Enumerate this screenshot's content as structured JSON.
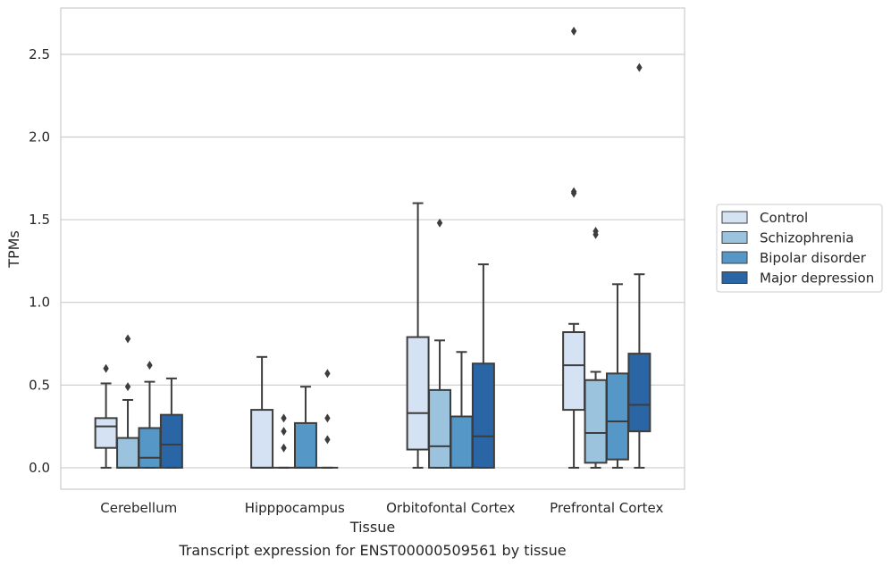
{
  "caption": "Transcript expression for ENST00000509561 by tissue",
  "chart_data": {
    "type": "box",
    "title": "",
    "xlabel": "Tissue",
    "ylabel": "TPMs",
    "ylim": [
      -0.13,
      2.78
    ],
    "yticks": [
      0.0,
      0.5,
      1.0,
      1.5,
      2.0,
      2.5
    ],
    "ytick_labels": [
      "0.0",
      "0.5",
      "1.0",
      "1.5",
      "2.0",
      "2.5"
    ],
    "grid": "horizontal",
    "legend_position": "right",
    "categories": [
      "Cerebellum",
      "Hipppocampus",
      "Orbitofontal Cortex",
      "Prefrontal Cortex"
    ],
    "series": [
      {
        "name": "Control",
        "color": "#d4e2f3",
        "boxes": [
          {
            "whislo": 0.0,
            "q1": 0.12,
            "med": 0.25,
            "q3": 0.3,
            "whishi": 0.51,
            "fliers": [
              0.6
            ]
          },
          {
            "whislo": 0.0,
            "q1": 0.0,
            "med": 0.0,
            "q3": 0.35,
            "whishi": 0.67,
            "fliers": []
          },
          {
            "whislo": 0.0,
            "q1": 0.11,
            "med": 0.33,
            "q3": 0.79,
            "whishi": 1.6,
            "fliers": []
          },
          {
            "whislo": 0.0,
            "q1": 0.35,
            "med": 0.62,
            "q3": 0.82,
            "whishi": 0.87,
            "fliers": [
              1.66,
              1.67,
              2.64
            ]
          }
        ]
      },
      {
        "name": "Schizophrenia",
        "color": "#9cc3de",
        "boxes": [
          {
            "whislo": 0.0,
            "q1": 0.0,
            "med": 0.0,
            "q3": 0.18,
            "whishi": 0.41,
            "fliers": [
              0.49,
              0.78
            ]
          },
          {
            "whislo": 0.0,
            "q1": 0.0,
            "med": 0.0,
            "q3": 0.0,
            "whishi": 0.0,
            "fliers": [
              0.12,
              0.22,
              0.3
            ]
          },
          {
            "whislo": 0.0,
            "q1": 0.0,
            "med": 0.13,
            "q3": 0.47,
            "whishi": 0.77,
            "fliers": [
              1.48
            ]
          },
          {
            "whislo": 0.0,
            "q1": 0.03,
            "med": 0.21,
            "q3": 0.53,
            "whishi": 0.58,
            "fliers": [
              1.41,
              1.43
            ]
          }
        ]
      },
      {
        "name": "Bipolar disorder",
        "color": "#5597c7",
        "boxes": [
          {
            "whislo": 0.0,
            "q1": 0.0,
            "med": 0.06,
            "q3": 0.24,
            "whishi": 0.52,
            "fliers": [
              0.62
            ]
          },
          {
            "whislo": 0.0,
            "q1": 0.0,
            "med": 0.0,
            "q3": 0.27,
            "whishi": 0.49,
            "fliers": []
          },
          {
            "whislo": 0.0,
            "q1": 0.0,
            "med": 0.0,
            "q3": 0.31,
            "whishi": 0.7,
            "fliers": []
          },
          {
            "whislo": 0.0,
            "q1": 0.05,
            "med": 0.28,
            "q3": 0.57,
            "whishi": 1.11,
            "fliers": []
          }
        ]
      },
      {
        "name": "Major depression",
        "color": "#2a65a5",
        "boxes": [
          {
            "whislo": 0.0,
            "q1": 0.0,
            "med": 0.14,
            "q3": 0.32,
            "whishi": 0.54,
            "fliers": []
          },
          {
            "whislo": 0.0,
            "q1": 0.0,
            "med": 0.0,
            "q3": 0.0,
            "whishi": 0.0,
            "fliers": [
              0.17,
              0.3,
              0.57
            ]
          },
          {
            "whislo": 0.0,
            "q1": 0.0,
            "med": 0.19,
            "q3": 0.63,
            "whishi": 1.23,
            "fliers": []
          },
          {
            "whislo": 0.0,
            "q1": 0.22,
            "med": 0.38,
            "q3": 0.69,
            "whishi": 1.17,
            "fliers": [
              2.42
            ]
          }
        ]
      }
    ]
  }
}
